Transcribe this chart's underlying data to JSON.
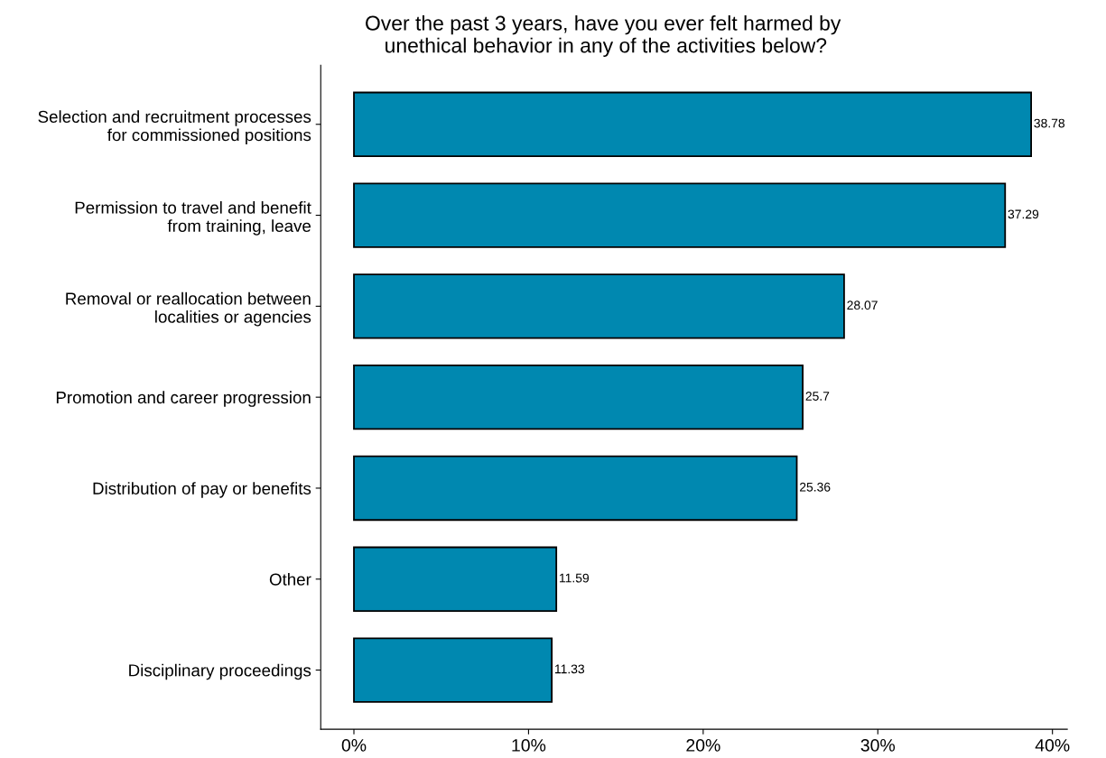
{
  "chart_data": {
    "type": "bar",
    "orientation": "horizontal",
    "title": "Over the past 3 years, have you ever felt harmed by\n unethical behavior in any of the activities below?",
    "categories": [
      "Selection and recruitment processes\nfor commissioned positions",
      "Permission to travel and benefit\nfrom training, leave",
      "Removal or reallocation between\nlocalities or agencies",
      "Promotion and career progression",
      "Distribution of pay or benefits",
      "Other",
      "Disciplinary proceedings"
    ],
    "values": [
      38.78,
      37.29,
      28.07,
      25.7,
      25.36,
      11.59,
      11.33
    ],
    "color": "#0088b0",
    "data_labels": true,
    "grid": false,
    "legend": false,
    "xlim": [
      -1.9,
      40.85
    ],
    "xticks": [
      {
        "value": 0,
        "label": "0%"
      },
      {
        "value": 10,
        "label": "10%"
      },
      {
        "value": 20,
        "label": "20%"
      },
      {
        "value": 30,
        "label": "30%"
      },
      {
        "value": 40,
        "label": "40%"
      }
    ]
  }
}
